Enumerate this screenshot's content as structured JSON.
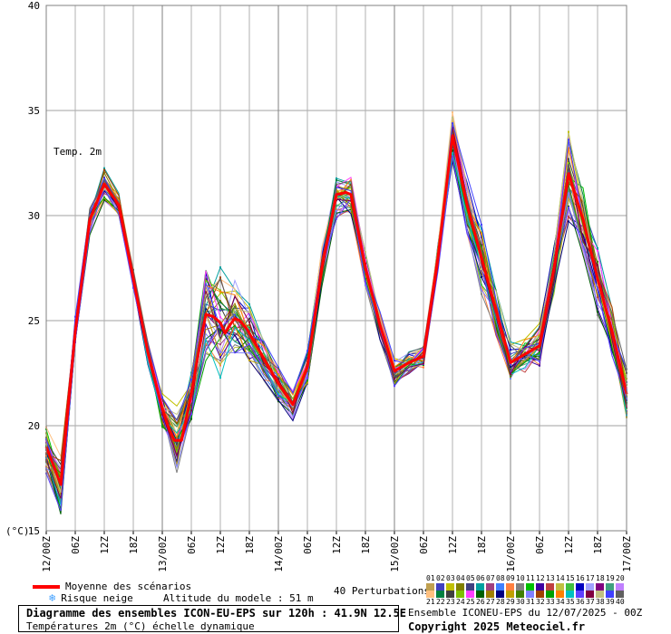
{
  "chart_data": {
    "type": "line",
    "ylabel": "(°C)",
    "annotation": "Temp. 2m",
    "ylim": [
      15,
      40
    ],
    "yticks": [
      15,
      20,
      25,
      30,
      35,
      40
    ],
    "xlim_hours": [
      0,
      120
    ],
    "x_ticks": [
      {
        "h": 0,
        "label": "12/00Z"
      },
      {
        "h": 6,
        "label": "06Z"
      },
      {
        "h": 12,
        "label": "12Z"
      },
      {
        "h": 18,
        "label": "18Z"
      },
      {
        "h": 24,
        "label": "13/00Z"
      },
      {
        "h": 30,
        "label": "06Z"
      },
      {
        "h": 36,
        "label": "12Z"
      },
      {
        "h": 42,
        "label": "18Z"
      },
      {
        "h": 48,
        "label": "14/00Z"
      },
      {
        "h": 54,
        "label": "06Z"
      },
      {
        "h": 60,
        "label": "12Z"
      },
      {
        "h": 66,
        "label": "18Z"
      },
      {
        "h": 72,
        "label": "15/00Z"
      },
      {
        "h": 78,
        "label": "06Z"
      },
      {
        "h": 84,
        "label": "12Z"
      },
      {
        "h": 90,
        "label": "18Z"
      },
      {
        "h": 96,
        "label": "16/00Z"
      },
      {
        "h": 102,
        "label": "06Z"
      },
      {
        "h": 108,
        "label": "12Z"
      },
      {
        "h": 114,
        "label": "18Z"
      },
      {
        "h": 120,
        "label": "17/00Z"
      }
    ],
    "mean_series": {
      "name": "Moyenne des scénarios",
      "color": "#ff0000",
      "points": [
        [
          0,
          19.0
        ],
        [
          3,
          17.2
        ],
        [
          6,
          24.5
        ],
        [
          9,
          29.8
        ],
        [
          12,
          31.5
        ],
        [
          15,
          30.5
        ],
        [
          18,
          27.0
        ],
        [
          21,
          23.5
        ],
        [
          24,
          20.8
        ],
        [
          25.5,
          19.8
        ],
        [
          26.5,
          19.3
        ],
        [
          28,
          19.3
        ],
        [
          30,
          21.5
        ],
        [
          31.5,
          23.5
        ],
        [
          33,
          25.3
        ],
        [
          34.5,
          25.2
        ],
        [
          36,
          24.9
        ],
        [
          37,
          24.4
        ],
        [
          38,
          24.8
        ],
        [
          39,
          25.1
        ],
        [
          40,
          25.0
        ],
        [
          41.5,
          24.6
        ],
        [
          43,
          24.0
        ],
        [
          45,
          23.2
        ],
        [
          48,
          22.0
        ],
        [
          51,
          21.0
        ],
        [
          54,
          22.8
        ],
        [
          57,
          27.5
        ],
        [
          60,
          31.0
        ],
        [
          62,
          31.1
        ],
        [
          63,
          31.0
        ],
        [
          66,
          27.5
        ],
        [
          69,
          24.8
        ],
        [
          72,
          22.6
        ],
        [
          75,
          23.0
        ],
        [
          78,
          23.3
        ],
        [
          81,
          28.0
        ],
        [
          84,
          33.8
        ],
        [
          87,
          30.5
        ],
        [
          90,
          28.0
        ],
        [
          93,
          25.5
        ],
        [
          96,
          23.0
        ],
        [
          99,
          23.4
        ],
        [
          102,
          23.8
        ],
        [
          105,
          27.5
        ],
        [
          108,
          32.0
        ],
        [
          111,
          29.8
        ],
        [
          114,
          27.0
        ],
        [
          117,
          24.5
        ],
        [
          120,
          21.5
        ]
      ]
    },
    "ensemble": {
      "count": 40,
      "base": [
        [
          0,
          19.0
        ],
        [
          3,
          17.2
        ],
        [
          6,
          24.5
        ],
        [
          9,
          29.8
        ],
        [
          12,
          31.5
        ],
        [
          15,
          30.5
        ],
        [
          18,
          27.0
        ],
        [
          21,
          23.5
        ],
        [
          24,
          20.8
        ],
        [
          27,
          19.4
        ],
        [
          30,
          21.5
        ],
        [
          33,
          25.3
        ],
        [
          36,
          24.9
        ],
        [
          39,
          25.1
        ],
        [
          42,
          24.4
        ],
        [
          45,
          23.2
        ],
        [
          48,
          22.0
        ],
        [
          51,
          21.0
        ],
        [
          54,
          22.8
        ],
        [
          57,
          27.5
        ],
        [
          60,
          31.0
        ],
        [
          63,
          31.0
        ],
        [
          66,
          27.5
        ],
        [
          69,
          24.8
        ],
        [
          72,
          22.6
        ],
        [
          75,
          23.0
        ],
        [
          78,
          23.3
        ],
        [
          81,
          28.0
        ],
        [
          84,
          33.8
        ],
        [
          87,
          30.5
        ],
        [
          90,
          28.0
        ],
        [
          93,
          25.5
        ],
        [
          96,
          23.0
        ],
        [
          99,
          23.4
        ],
        [
          102,
          23.8
        ],
        [
          105,
          27.5
        ],
        [
          108,
          32.0
        ],
        [
          111,
          29.8
        ],
        [
          114,
          27.0
        ],
        [
          117,
          24.5
        ],
        [
          120,
          21.5
        ]
      ],
      "spread": [
        1.0,
        1.2,
        0.6,
        0.6,
        0.7,
        0.5,
        0.4,
        0.5,
        0.8,
        1.3,
        1.0,
        2.2,
        2.4,
        1.8,
        1.2,
        0.9,
        0.7,
        0.7,
        0.7,
        0.9,
        0.9,
        0.9,
        0.8,
        0.6,
        0.6,
        0.5,
        0.5,
        0.7,
        1.0,
        1.3,
        1.5,
        1.2,
        0.9,
        0.8,
        0.9,
        1.2,
        2.0,
        1.6,
        1.4,
        1.2,
        1.4
      ],
      "colors": [
        "#c0a050",
        "#4040c0",
        "#c0c000",
        "#808000",
        "#404080",
        "#00a0a0",
        "#a04080",
        "#4080ff",
        "#ff8040",
        "#808080",
        "#00c000",
        "#4000a0",
        "#c04040",
        "#c0c040",
        "#40c040",
        "#0000c0",
        "#a0a0ff",
        "#800080",
        "#40a080",
        "#c080ff",
        "#ffc080",
        "#008040",
        "#404040",
        "#80c000",
        "#ff40ff",
        "#006000",
        "#a08000",
        "#000080",
        "#c0a000",
        "#408000",
        "#8080ff",
        "#a04000",
        "#00a000",
        "#ff8000",
        "#00c0c0",
        "#6040ff",
        "#800040",
        "#c0c080",
        "#4040ff",
        "#606060"
      ]
    }
  },
  "legend": {
    "mean_label": "Moyenne des scénarios",
    "snow_label": "Risque neige",
    "altitude_label": "Altitude du modele : 51 m",
    "perturbations_label": "40 Perturbations",
    "numbers_top": [
      "01",
      "02",
      "03",
      "04",
      "05",
      "06",
      "07",
      "08",
      "09",
      "10",
      "11",
      "12",
      "13",
      "14",
      "15",
      "16",
      "17",
      "18",
      "19",
      "20"
    ],
    "numbers_bottom": [
      "21",
      "22",
      "23",
      "24",
      "25",
      "26",
      "27",
      "28",
      "29",
      "30",
      "31",
      "32",
      "33",
      "34",
      "35",
      "36",
      "37",
      "38",
      "39",
      "40"
    ],
    "mean_color": "#ff0000",
    "snow_color": "#40a0ff"
  },
  "footer": {
    "title": "Diagramme des ensembles ICON-EU-EPS sur 120h : 41.9N 12.5E",
    "subtitle": "Températures 2m (°C) échelle dynamique",
    "run_label": "Ensemble ICONEU-EPS du 12/07/2025 - 00Z",
    "copyright": "Copyright 2025 Meteociel.fr"
  }
}
